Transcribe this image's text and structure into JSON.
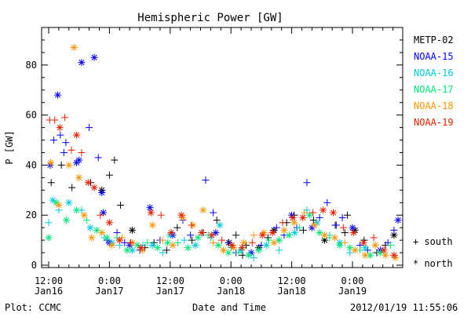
{
  "chart_data": {
    "type": "scatter",
    "title": "Hemispheric Power [GW]",
    "xlabel": "Date and Time",
    "ylabel": "P [GW]",
    "ylim": [
      0,
      95
    ],
    "xlim_hours": [
      0,
      90
    ],
    "grid": false,
    "legend_position": "right",
    "x_ticks": [
      {
        "hours": 0,
        "line1": "12:00",
        "line2": "Jan16"
      },
      {
        "hours": 12,
        "line1": "0:00",
        "line2": "Jan17"
      },
      {
        "hours": 24,
        "line1": "12:00",
        "line2": "Jan17"
      },
      {
        "hours": 36,
        "line1": "0:00",
        "line2": "Jan18"
      },
      {
        "hours": 48,
        "line1": "12:00",
        "line2": "Jan18"
      },
      {
        "hours": 60,
        "line1": "0:00",
        "line2": "Jan19"
      }
    ],
    "y_ticks": [
      0,
      20,
      40,
      60,
      80
    ],
    "symbols": {
      "south": "+",
      "north": "*"
    },
    "legend_symbols": [
      {
        "symbol": "+",
        "label": "south"
      },
      {
        "symbol": "*",
        "label": "north"
      }
    ],
    "series": [
      {
        "name": "METP-02",
        "color": "#000000",
        "points": [
          [
            0.5,
            33,
            "+"
          ],
          [
            2.5,
            40,
            "+"
          ],
          [
            4.6,
            31,
            "+"
          ],
          [
            8.3,
            33,
            "+"
          ],
          [
            10.5,
            30,
            "*"
          ],
          [
            12.0,
            36,
            "+"
          ],
          [
            13.0,
            42,
            "+"
          ],
          [
            14.2,
            24,
            "+"
          ],
          [
            16.5,
            14,
            "*"
          ],
          [
            19.0,
            7,
            "+"
          ],
          [
            20.8,
            9,
            "+"
          ],
          [
            23.3,
            6,
            "+"
          ],
          [
            25.4,
            15,
            "+"
          ],
          [
            28.3,
            10,
            "+"
          ],
          [
            30.5,
            13,
            "+"
          ],
          [
            33.2,
            18,
            "+"
          ],
          [
            35.6,
            9,
            "*"
          ],
          [
            37.0,
            12,
            "+"
          ],
          [
            38.3,
            4,
            "+"
          ],
          [
            39.0,
            8,
            "+"
          ],
          [
            41.5,
            7,
            "*"
          ],
          [
            43.3,
            11,
            "+"
          ],
          [
            44.5,
            14,
            "*"
          ],
          [
            45.5,
            10,
            "+"
          ],
          [
            47.0,
            17,
            "+"
          ],
          [
            48.5,
            20,
            "+"
          ],
          [
            50.3,
            14,
            "+"
          ],
          [
            52.3,
            18,
            "+"
          ],
          [
            54.5,
            10,
            "*"
          ],
          [
            56.6,
            16,
            "+"
          ],
          [
            58.5,
            13,
            "+"
          ],
          [
            59.0,
            20,
            "+"
          ],
          [
            60.5,
            14,
            "*"
          ],
          [
            62.3,
            10,
            "+"
          ],
          [
            64.8,
            5,
            "+"
          ],
          [
            66.5,
            8,
            "+"
          ],
          [
            68.2,
            12,
            "*"
          ]
        ]
      },
      {
        "name": "NOAA-15",
        "color": "#0000ff",
        "points": [
          [
            0.3,
            40,
            "*"
          ],
          [
            1.0,
            50,
            "+"
          ],
          [
            1.8,
            68,
            "*"
          ],
          [
            2.3,
            52,
            "+"
          ],
          [
            3.0,
            45,
            "+"
          ],
          [
            3.4,
            49,
            "+"
          ],
          [
            5.5,
            41,
            "*"
          ],
          [
            6.0,
            42,
            "*"
          ],
          [
            6.5,
            81,
            "*"
          ],
          [
            8.0,
            55,
            "+"
          ],
          [
            9.0,
            83,
            "*"
          ],
          [
            9.8,
            43,
            "+"
          ],
          [
            10.5,
            29,
            "*"
          ],
          [
            10.8,
            21,
            "*"
          ],
          [
            11.5,
            10,
            "+"
          ],
          [
            12.0,
            9,
            "*"
          ],
          [
            13.5,
            13,
            "+"
          ],
          [
            15.0,
            9,
            "+"
          ],
          [
            16.0,
            8,
            "*"
          ],
          [
            18.0,
            6,
            "+"
          ],
          [
            20.0,
            23,
            "*"
          ],
          [
            22.0,
            10,
            "+"
          ],
          [
            24.5,
            12,
            "*"
          ],
          [
            26.5,
            18,
            "+"
          ],
          [
            28.0,
            12,
            "+"
          ],
          [
            31.0,
            34,
            "+"
          ],
          [
            32.5,
            21,
            "+"
          ],
          [
            33.0,
            13,
            "*"
          ],
          [
            35.5,
            9,
            "+"
          ],
          [
            37.0,
            5,
            "+"
          ],
          [
            40.0,
            5,
            "*"
          ],
          [
            42.0,
            8,
            "+"
          ],
          [
            45.0,
            15,
            "+"
          ],
          [
            46.5,
            12,
            "+"
          ],
          [
            48.0,
            20,
            "*"
          ],
          [
            49.0,
            15,
            "+"
          ],
          [
            51.0,
            33,
            "+"
          ],
          [
            52.0,
            15,
            "*"
          ],
          [
            53.5,
            19,
            "+"
          ],
          [
            55.0,
            25,
            "+"
          ],
          [
            56.8,
            16,
            "+"
          ],
          [
            58.0,
            19,
            "+"
          ],
          [
            60.0,
            15,
            "*"
          ],
          [
            61.5,
            8,
            "+"
          ],
          [
            63.0,
            6,
            "+"
          ],
          [
            65.5,
            6,
            "*"
          ],
          [
            67.0,
            9,
            "+"
          ],
          [
            68.2,
            14,
            "+"
          ],
          [
            69.0,
            18,
            "*"
          ]
        ]
      },
      {
        "name": "NOAA-16",
        "color": "#00c8dc",
        "points": [
          [
            0.0,
            17,
            "+"
          ],
          [
            0.8,
            26,
            "*"
          ],
          [
            2.0,
            22,
            "+"
          ],
          [
            4.0,
            25,
            "*"
          ],
          [
            6.5,
            22,
            "+"
          ],
          [
            8.2,
            15,
            "*"
          ],
          [
            11.0,
            11,
            "+"
          ],
          [
            12.5,
            9,
            "*"
          ],
          [
            14.0,
            8,
            "+"
          ],
          [
            16.5,
            6,
            "*"
          ],
          [
            18.6,
            8,
            "+"
          ],
          [
            20.5,
            8,
            "*"
          ],
          [
            22.5,
            5,
            "+"
          ],
          [
            24.0,
            12,
            "*"
          ],
          [
            26.8,
            10,
            "+"
          ],
          [
            29.0,
            8,
            "*"
          ],
          [
            32.0,
            11,
            "+"
          ],
          [
            33.8,
            16,
            "*"
          ],
          [
            36.0,
            7,
            "+"
          ],
          [
            38.0,
            6,
            "*"
          ],
          [
            40.5,
            3,
            "+"
          ],
          [
            43.0,
            8,
            "*"
          ],
          [
            45.5,
            6,
            "+"
          ],
          [
            48.6,
            13,
            "*"
          ],
          [
            51.0,
            22,
            "+"
          ],
          [
            53.0,
            17,
            "*"
          ],
          [
            55.5,
            12,
            "+"
          ],
          [
            57.5,
            9,
            "*"
          ],
          [
            59.5,
            5,
            "+"
          ],
          [
            62.5,
            7,
            "*"
          ],
          [
            64.5,
            8,
            "+"
          ]
        ]
      },
      {
        "name": "NOAA-17",
        "color": "#00e678",
        "points": [
          [
            0.0,
            11,
            "*"
          ],
          [
            1.5,
            25,
            "*"
          ],
          [
            3.5,
            18,
            "*"
          ],
          [
            5.5,
            22,
            "*"
          ],
          [
            7.5,
            18,
            "+"
          ],
          [
            9.5,
            14,
            "*"
          ],
          [
            11.5,
            11,
            "*"
          ],
          [
            13.5,
            11,
            "+"
          ],
          [
            15.5,
            6,
            "*"
          ],
          [
            17.5,
            8,
            "*"
          ],
          [
            19.5,
            9,
            "+"
          ],
          [
            21.5,
            7,
            "*"
          ],
          [
            23.5,
            9,
            "*"
          ],
          [
            25.5,
            9,
            "+"
          ],
          [
            27.5,
            7,
            "*"
          ],
          [
            29.5,
            11,
            "*"
          ],
          [
            31.5,
            12,
            "+"
          ],
          [
            33.5,
            8,
            "*"
          ],
          [
            35.5,
            5,
            "*"
          ],
          [
            37.5,
            5,
            "+"
          ],
          [
            39.5,
            4,
            "*"
          ],
          [
            41.5,
            6,
            "*"
          ],
          [
            43.5,
            10,
            "+"
          ],
          [
            45.5,
            10,
            "*"
          ],
          [
            47.5,
            12,
            "*"
          ],
          [
            49.5,
            15,
            "+"
          ],
          [
            51.5,
            20,
            "*"
          ],
          [
            53.5,
            13,
            "*"
          ],
          [
            55.5,
            11,
            "+"
          ],
          [
            57.5,
            8,
            "*"
          ],
          [
            59.5,
            7,
            "*"
          ],
          [
            61.5,
            6,
            "+"
          ],
          [
            63.5,
            4,
            "*"
          ],
          [
            65.5,
            5,
            "*"
          ],
          [
            67.5,
            8,
            "+"
          ]
        ]
      },
      {
        "name": "NOAA-18",
        "color": "#ff9600",
        "points": [
          [
            0.4,
            41,
            "*"
          ],
          [
            2.0,
            24,
            "*"
          ],
          [
            4.0,
            40,
            "*"
          ],
          [
            5.0,
            87,
            "*"
          ],
          [
            6.0,
            35,
            "*"
          ],
          [
            7.0,
            20,
            "*"
          ],
          [
            8.5,
            11,
            "*"
          ],
          [
            10.5,
            13,
            "*"
          ],
          [
            12.5,
            8,
            "*"
          ],
          [
            14.5,
            11,
            "+"
          ],
          [
            16.5,
            9,
            "*"
          ],
          [
            18.5,
            6,
            "*"
          ],
          [
            20.5,
            16,
            "*"
          ],
          [
            22.5,
            10,
            "+"
          ],
          [
            24.5,
            8,
            "*"
          ],
          [
            26.5,
            19,
            "*"
          ],
          [
            28.5,
            16,
            "*"
          ],
          [
            30.5,
            22,
            "*"
          ],
          [
            32.5,
            9,
            "+"
          ],
          [
            34.5,
            6,
            "*"
          ],
          [
            36.5,
            7,
            "*"
          ],
          [
            38.5,
            9,
            "*"
          ],
          [
            40.5,
            12,
            "+"
          ],
          [
            42.5,
            13,
            "*"
          ],
          [
            44.5,
            9,
            "*"
          ],
          [
            46.5,
            14,
            "*"
          ],
          [
            48.5,
            17,
            "*"
          ],
          [
            50.5,
            21,
            "+"
          ],
          [
            52.5,
            16,
            "*"
          ],
          [
            54.5,
            12,
            "*"
          ],
          [
            56.5,
            11,
            "*"
          ],
          [
            58.5,
            9,
            "+"
          ],
          [
            60.5,
            6,
            "*"
          ],
          [
            62.5,
            4,
            "*"
          ],
          [
            64.5,
            8,
            "*"
          ],
          [
            66.5,
            4,
            "*"
          ],
          [
            68.5,
            3,
            "*"
          ]
        ]
      },
      {
        "name": "NOAA-19",
        "color": "#e61e00",
        "points": [
          [
            0.2,
            58,
            "+"
          ],
          [
            1.2,
            58,
            "+"
          ],
          [
            2.2,
            55,
            "*"
          ],
          [
            3.2,
            59,
            "+"
          ],
          [
            4.5,
            46,
            "+"
          ],
          [
            5.5,
            52,
            "*"
          ],
          [
            6.5,
            45,
            "+"
          ],
          [
            7.8,
            33,
            "*"
          ],
          [
            9.0,
            31,
            "*"
          ],
          [
            10.2,
            20,
            "+"
          ],
          [
            12.0,
            17,
            "*"
          ],
          [
            14.0,
            10,
            "*"
          ],
          [
            16.2,
            9,
            "+"
          ],
          [
            18.2,
            7,
            "*"
          ],
          [
            20.2,
            21,
            "*"
          ],
          [
            22.2,
            20,
            "+"
          ],
          [
            24.2,
            13,
            "*"
          ],
          [
            26.2,
            20,
            "*"
          ],
          [
            28.2,
            16,
            "+"
          ],
          [
            30.2,
            13,
            "*"
          ],
          [
            32.2,
            12,
            "*"
          ],
          [
            34.2,
            10,
            "+"
          ],
          [
            36.2,
            8,
            "*"
          ],
          [
            38.2,
            7,
            "*"
          ],
          [
            40.2,
            9,
            "+"
          ],
          [
            42.2,
            12,
            "*"
          ],
          [
            44.2,
            13,
            "*"
          ],
          [
            46.2,
            17,
            "+"
          ],
          [
            48.2,
            19,
            "*"
          ],
          [
            50.2,
            19,
            "*"
          ],
          [
            52.2,
            21,
            "+"
          ],
          [
            54.2,
            22,
            "*"
          ],
          [
            56.2,
            21,
            "*"
          ],
          [
            58.2,
            15,
            "+"
          ],
          [
            60.2,
            13,
            "*"
          ],
          [
            62.2,
            9,
            "*"
          ],
          [
            64.2,
            11,
            "+"
          ],
          [
            66.2,
            6,
            "*"
          ],
          [
            68.2,
            4,
            "*"
          ]
        ]
      }
    ]
  },
  "footer": {
    "left": "Plot: CCMC",
    "right": "2012/01/19 11:55:06"
  }
}
